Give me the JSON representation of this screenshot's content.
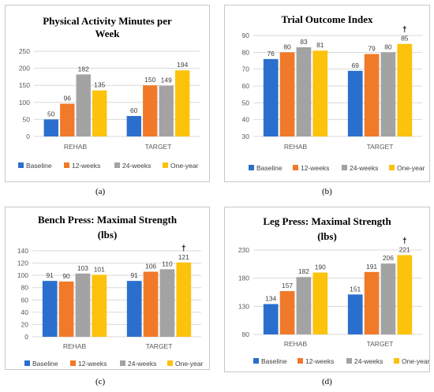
{
  "colors": {
    "Baseline": "#2a6fcd",
    "12-weeks": "#f07a2a",
    "24-weeks": "#a3a3a3",
    "One-year": "#fcc20c",
    "grid": "#d9d9d9"
  },
  "captions": [
    "(a)",
    "(b)",
    "(c)",
    "(d)"
  ],
  "chart_data": [
    {
      "type": "bar",
      "title_lines": [
        "Physical Activity Minutes per",
        "Week"
      ],
      "categories": [
        "REHAB",
        "TARGET"
      ],
      "ylim": [
        0,
        250
      ],
      "yticks": [
        0,
        50,
        100,
        150,
        200,
        250
      ],
      "series": [
        {
          "name": "Baseline",
          "values": [
            50,
            60
          ]
        },
        {
          "name": "12-weeks",
          "values": [
            96,
            150
          ]
        },
        {
          "name": "24-weeks",
          "values": [
            182,
            149
          ]
        },
        {
          "name": "One-year",
          "values": [
            135,
            194
          ]
        }
      ],
      "annotations": [],
      "legend": "bottom",
      "grid": true
    },
    {
      "type": "bar",
      "title_lines": [
        "Trial Outcome Index"
      ],
      "categories": [
        "REHAB",
        "TARGET"
      ],
      "ylim": [
        30,
        90
      ],
      "yticks": [
        30,
        40,
        50,
        60,
        70,
        80,
        90
      ],
      "series": [
        {
          "name": "Baseline",
          "values": [
            76,
            69
          ]
        },
        {
          "name": "12-weeks",
          "values": [
            80,
            79
          ]
        },
        {
          "name": "24-weeks",
          "values": [
            83,
            80
          ]
        },
        {
          "name": "One-year",
          "values": [
            81,
            85
          ]
        }
      ],
      "annotations": [
        {
          "text": "†",
          "category": 1,
          "series": 3
        }
      ],
      "legend": "bottom",
      "grid": true
    },
    {
      "type": "bar",
      "title_lines": [
        "Bench Press: Maximal Strength",
        "(lbs)"
      ],
      "categories": [
        "REHAB",
        "TARGET"
      ],
      "ylim": [
        0,
        140
      ],
      "yticks": [
        0,
        20,
        40,
        60,
        80,
        100,
        120,
        140
      ],
      "series": [
        {
          "name": "Baseline",
          "values": [
            91,
            91
          ]
        },
        {
          "name": "12-weeks",
          "values": [
            90,
            106
          ]
        },
        {
          "name": "24-weeks",
          "values": [
            103,
            110
          ]
        },
        {
          "name": "One-year",
          "values": [
            101,
            121
          ]
        }
      ],
      "annotations": [
        {
          "text": "†",
          "category": 1,
          "series": 3
        }
      ],
      "legend": "bottom",
      "grid": true
    },
    {
      "type": "bar",
      "title_lines": [
        "Leg Press: Maximal Strength",
        "(lbs)"
      ],
      "categories": [
        "REHAB",
        "TARGET"
      ],
      "ylim": [
        80,
        230
      ],
      "yticks": [
        80,
        130,
        180,
        230
      ],
      "series": [
        {
          "name": "Baseline",
          "values": [
            134,
            151
          ]
        },
        {
          "name": "12-weeks",
          "values": [
            157,
            191
          ]
        },
        {
          "name": "24-weeks",
          "values": [
            182,
            206
          ]
        },
        {
          "name": "One-year",
          "values": [
            190,
            221
          ]
        }
      ],
      "annotations": [
        {
          "text": "†",
          "category": 1,
          "series": 3
        }
      ],
      "legend": "bottom",
      "grid": true
    }
  ]
}
